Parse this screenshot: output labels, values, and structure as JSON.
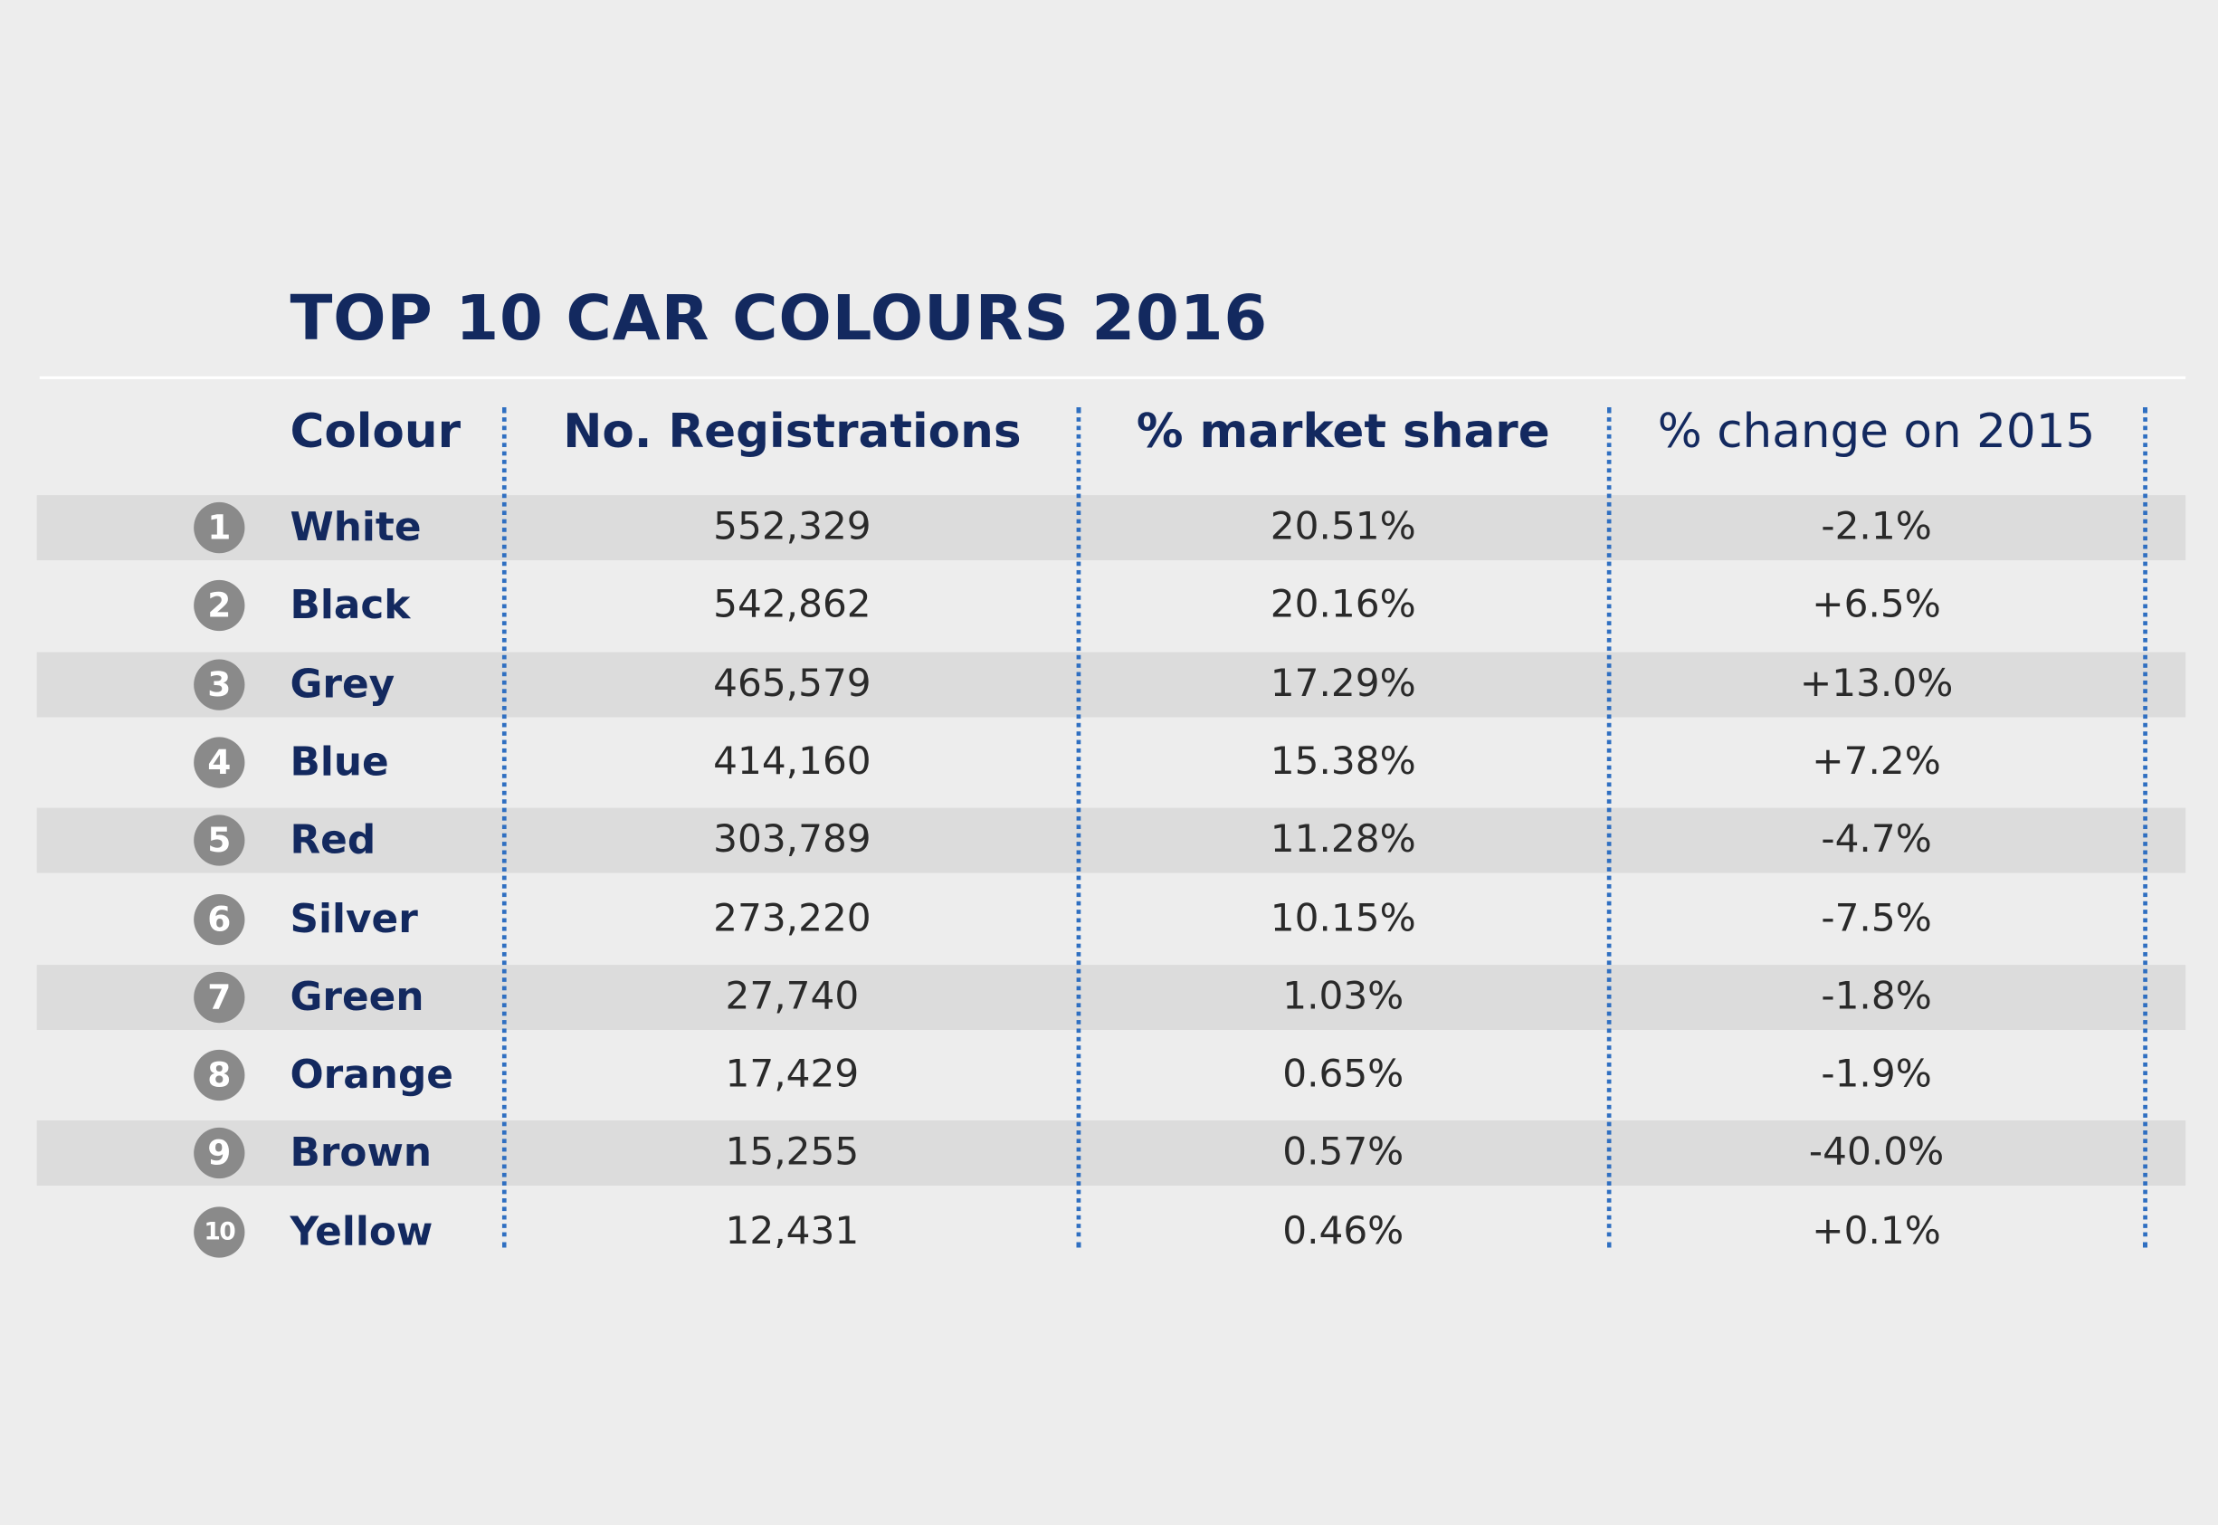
{
  "chart_data": {
    "type": "table",
    "title": "TOP 10 CAR COLOURS 2016",
    "columns": [
      "Colour",
      "No. Registrations",
      "% market share",
      "% change on 2015"
    ],
    "rows": [
      {
        "rank": "1",
        "colour": "White",
        "registrations": "552,329",
        "share": "20.51%",
        "change": "-2.1%"
      },
      {
        "rank": "2",
        "colour": "Black",
        "registrations": "542,862",
        "share": "20.16%",
        "change": "+6.5%"
      },
      {
        "rank": "3",
        "colour": "Grey",
        "registrations": "465,579",
        "share": "17.29%",
        "change": "+13.0%"
      },
      {
        "rank": "4",
        "colour": "Blue",
        "registrations": "414,160",
        "share": "15.38%",
        "change": "+7.2%"
      },
      {
        "rank": "5",
        "colour": "Red",
        "registrations": "303,789",
        "share": "11.28%",
        "change": "-4.7%"
      },
      {
        "rank": "6",
        "colour": "Silver",
        "registrations": "273,220",
        "share": "10.15%",
        "change": "-7.5%"
      },
      {
        "rank": "7",
        "colour": "Green",
        "registrations": "27,740",
        "share": "1.03%",
        "change": "-1.8%"
      },
      {
        "rank": "8",
        "colour": "Orange",
        "registrations": "17,429",
        "share": "0.65%",
        "change": "-1.9%"
      },
      {
        "rank": "9",
        "colour": "Brown",
        "registrations": "15,255",
        "share": "0.57%",
        "change": "-40.0%"
      },
      {
        "rank": "10",
        "colour": "Yellow",
        "registrations": "12,431",
        "share": "0.46%",
        "change": "+0.1%"
      }
    ]
  },
  "colors": {
    "background": "#ededed",
    "band": "#dcdcdc",
    "heading": "#13295f",
    "divider": "#2f6fc1",
    "rank_badge": "#8a8a8a"
  }
}
